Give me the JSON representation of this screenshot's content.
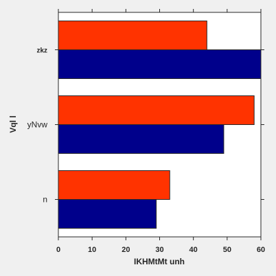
{
  "chart_data": {
    "type": "bar",
    "orientation": "horizontal",
    "categories": [
      "n",
      "yNvw",
      "zkz"
    ],
    "series": [
      {
        "values": [
          29,
          49,
          60
        ],
        "color": "#00008b"
      },
      {
        "values": [
          33,
          58,
          44
        ],
        "color": "#ff3300"
      }
    ],
    "xlabel": "IKHMtMt unh",
    "ylabel": "Vql  l",
    "xlim": [
      0,
      60
    ],
    "xticks": [
      0,
      10,
      20,
      30,
      40,
      50,
      60
    ],
    "grid": false,
    "legend": "none"
  }
}
